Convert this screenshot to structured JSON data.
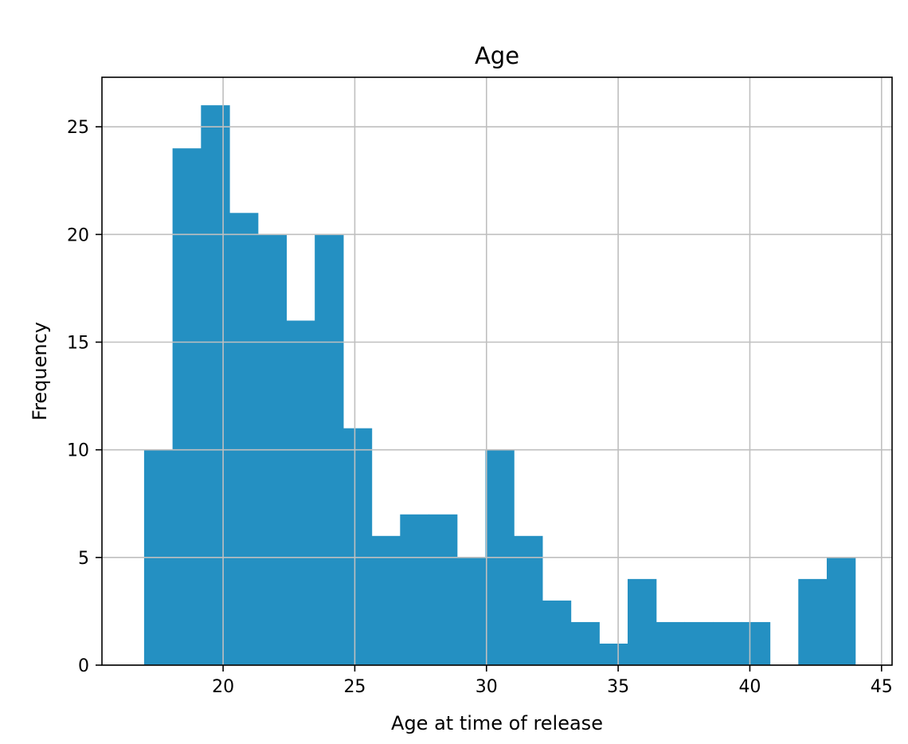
{
  "chart_data": {
    "type": "histogram",
    "title": "Age",
    "xlabel": "Age at time of release",
    "ylabel": "Frequency",
    "bin_start": 17,
    "bin_width": 1.08,
    "counts": [
      10,
      24,
      26,
      21,
      20,
      16,
      20,
      11,
      6,
      7,
      7,
      5,
      10,
      6,
      3,
      2,
      1,
      4,
      2,
      2,
      2,
      2,
      0,
      4,
      5
    ],
    "xlim": [
      15.4,
      45.4
    ],
    "ylim": [
      0,
      27.3
    ],
    "xticks": [
      20,
      25,
      30,
      35,
      40,
      45
    ],
    "yticks": [
      0,
      5,
      10,
      15,
      20,
      25
    ],
    "grid": true,
    "bar_color": "#2490c2",
    "grid_color": "#bfbfbf"
  }
}
